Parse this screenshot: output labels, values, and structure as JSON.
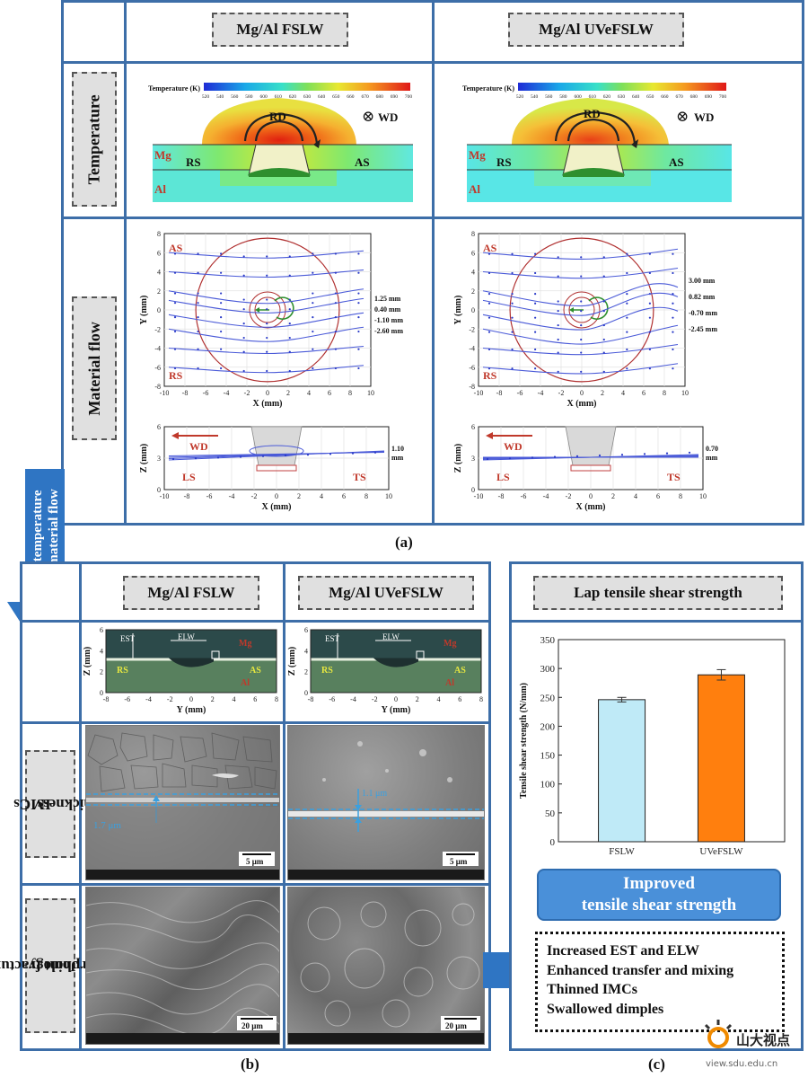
{
  "panel_a": {
    "col_fslw": "Mg/Al FSLW",
    "col_uve": "Mg/Al UVeFSLW",
    "row_temperature": "Temperature",
    "row_material_flow": "Material flow",
    "temp_colorbar_label": "Temperature (K)",
    "temp_ticks": [
      "520",
      "540",
      "560",
      "580",
      "600",
      "610",
      "620",
      "630",
      "640",
      "650",
      "660",
      "670",
      "680",
      "690",
      "700"
    ],
    "labels": {
      "rd": "RD",
      "wd_symbol": "⊗",
      "wd": "WD",
      "mg": "Mg",
      "al": "Al",
      "rs": "RS",
      "as": "AS"
    },
    "flow_top": {
      "xlabel": "X (mm)",
      "ylabel": "Y (mm)",
      "x_ticks": [
        "-10",
        "-8",
        "-6",
        "-4",
        "-2",
        "0",
        "2",
        "4",
        "6",
        "8",
        "10"
      ],
      "y_ticks": [
        "8",
        "6",
        "4",
        "2",
        "0",
        "-2",
        "-4",
        "-6",
        "-8"
      ],
      "as": "AS",
      "rs": "RS",
      "fslw_values": [
        "1.25 mm",
        "0.40 mm",
        "-1.10 mm",
        "-2.60 mm"
      ],
      "uve_values": [
        "3.00 mm",
        "0.82 mm",
        "-0.70 mm",
        "-2.45 mm"
      ]
    },
    "flow_side": {
      "xlabel": "X (mm)",
      "ylabel": "Z (mm)",
      "x_ticks": [
        "-10",
        "-8",
        "-6",
        "-4",
        "-2",
        "0",
        "2",
        "4",
        "6",
        "8",
        "10"
      ],
      "y_ticks": [
        "6",
        "3",
        "0"
      ],
      "wd": "WD",
      "ls": "LS",
      "ts": "TS",
      "fslw_value": "1.10",
      "uve_value": "0.70",
      "unit": "mm"
    },
    "label": "(a)"
  },
  "side_arrow": {
    "line1": "Decreased temperature",
    "line2": "Increased material flow"
  },
  "panel_b": {
    "col_fslw": "Mg/Al FSLW",
    "col_uve": "Mg/Al UVeFSLW",
    "row_imcs": [
      "IMCs",
      "thickness"
    ],
    "row_fracture": [
      "Joint fracture",
      "morphology"
    ],
    "cross_section": {
      "xlabel": "Y (mm)",
      "ylabel": "Z (mm)",
      "x_ticks": [
        "-8",
        "-6",
        "-4",
        "-2",
        "0",
        "2",
        "4",
        "6",
        "8"
      ],
      "y_ticks": [
        "6",
        "4",
        "2",
        "0"
      ],
      "est": "EST",
      "elw": "ELW",
      "mg": "Mg",
      "al": "Al",
      "rs": "RS",
      "as": "AS"
    },
    "imc_fslw": "1.7 μm",
    "imc_uve": "1.1 μm",
    "scale_5": "5 μm",
    "scale_20": "20 μm",
    "label": "(b)"
  },
  "panel_c": {
    "title": "Lap tensile shear strength",
    "improved_line1": "Improved",
    "improved_line2": "tensile shear strength",
    "bullets": [
      "Increased EST and ELW",
      "Enhanced transfer and mixing",
      "Thinned IMCs",
      "Swallowed dimples"
    ],
    "label": "(c)"
  },
  "chart_data": {
    "type": "bar",
    "categories": [
      "FSLW",
      "UVeFSLW"
    ],
    "values": [
      246,
      289
    ],
    "errors": [
      4,
      9
    ],
    "colors": [
      "#bfeaf7",
      "#ff7f0e"
    ],
    "title": "",
    "xlabel": "",
    "ylabel": "Tensile shear strength (N/mm)",
    "ylim": [
      0,
      350
    ],
    "y_ticks": [
      0,
      50,
      100,
      150,
      200,
      250,
      300,
      350
    ]
  },
  "watermark": {
    "text": "山大视点",
    "url": "view.sdu.edu.cn"
  }
}
